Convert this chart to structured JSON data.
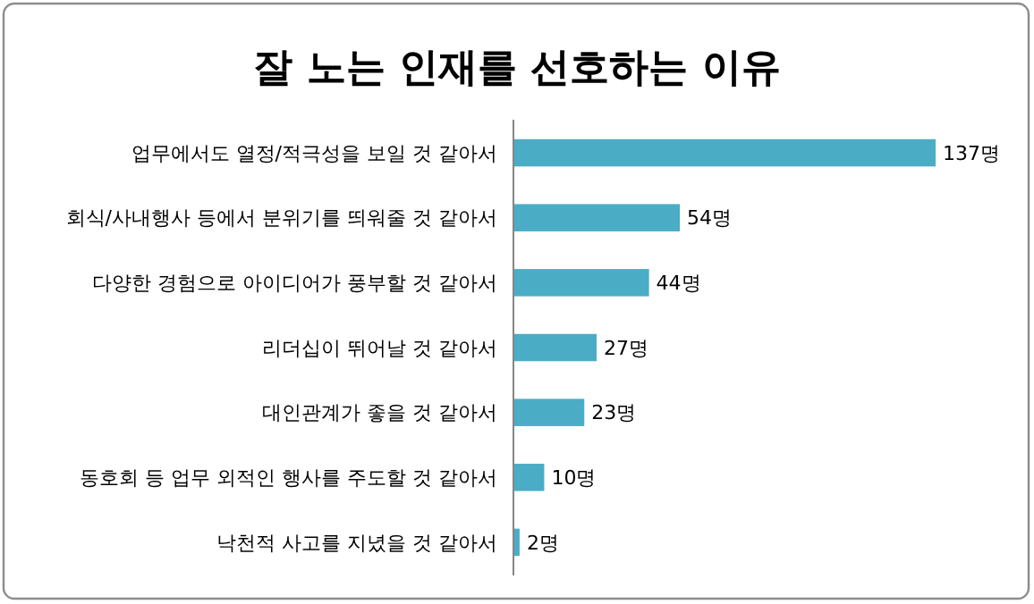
{
  "chart_data": {
    "type": "bar",
    "orientation": "horizontal",
    "title": "잘 노는 인재를 선호하는 이유",
    "categories": [
      "업무에서도 열정/적극성을 보일 것 같아서",
      "회식/사내행사 등에서 분위기를 띄워줄 것 같아서",
      "다양한 경험으로 아이디어가 풍부할 것 같아서",
      "리더십이 뛰어날 것 같아서",
      "대인관계가 좋을 것 같아서",
      "동호회 등 업무 외적인 행사를 주도할 것 같아서",
      "낙천적 사고를 지녔을 것 같아서"
    ],
    "values": [
      137,
      54,
      44,
      27,
      23,
      10,
      2
    ],
    "value_labels": [
      "137명",
      "54명",
      "44명",
      "27명",
      "23명",
      "10명",
      "2명"
    ],
    "color": "#4bacc6"
  }
}
